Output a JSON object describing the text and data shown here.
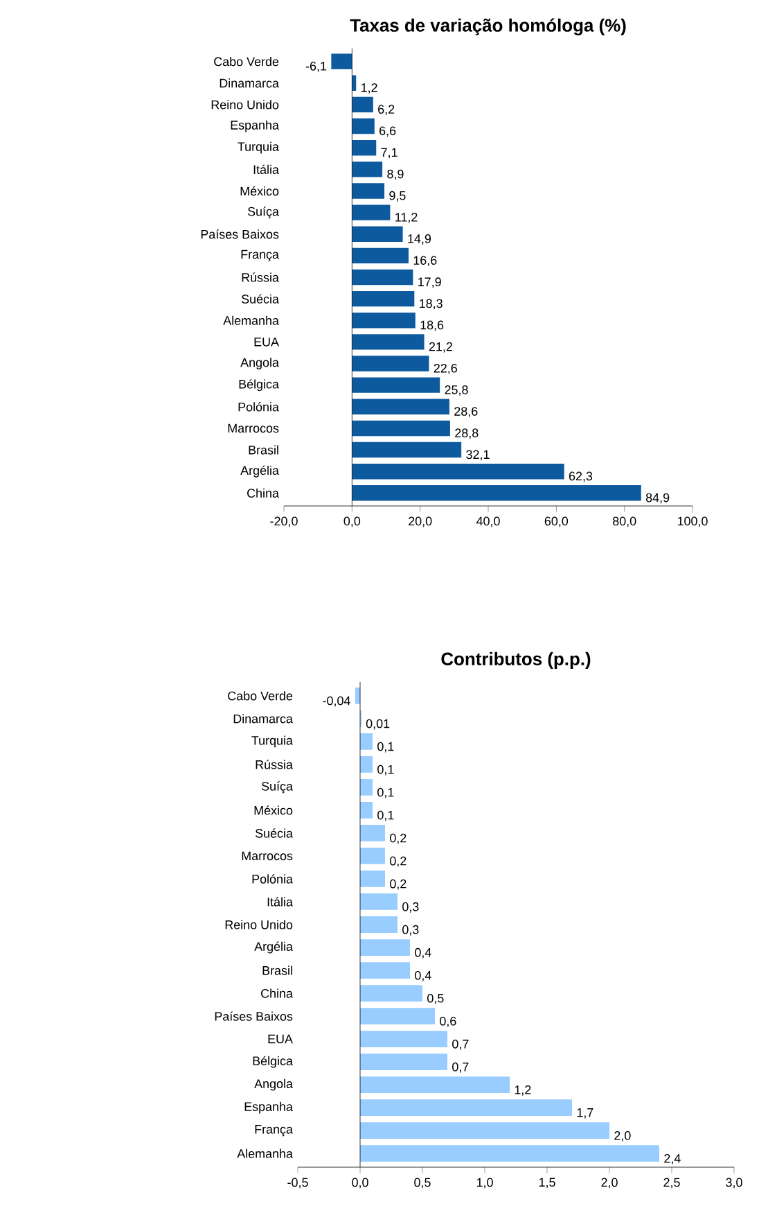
{
  "chart_data": [
    {
      "type": "bar",
      "orientation": "horizontal",
      "title": "Taxas de variação homóloga (%)",
      "color": "#0e5a9e",
      "categories": [
        "Cabo Verde",
        "Dinamarca",
        "Reino Unido",
        "Espanha",
        "Turquia",
        "Itália",
        "México",
        "Suíça",
        "Países Baixos",
        "França",
        "Rússia",
        "Suécia",
        "Alemanha",
        "EUA",
        "Angola",
        "Bélgica",
        "Polónia",
        "Marrocos",
        "Brasil",
        "Argélia",
        "China"
      ],
      "values": [
        -6.1,
        1.2,
        6.2,
        6.6,
        7.1,
        8.9,
        9.5,
        11.2,
        14.9,
        16.6,
        17.9,
        18.3,
        18.6,
        21.2,
        22.6,
        25.8,
        28.6,
        28.8,
        32.1,
        62.3,
        84.9
      ],
      "value_labels": [
        "-6,1",
        "1,2",
        "6,2",
        "6,6",
        "7,1",
        "8,9",
        "9,5",
        "11,2",
        "14,9",
        "16,6",
        "17,9",
        "18,3",
        "18,6",
        "21,2",
        "22,6",
        "25,8",
        "28,6",
        "28,8",
        "32,1",
        "62,3",
        "84,9"
      ],
      "xlim": [
        -20,
        100
      ],
      "xticks": [
        {
          "value": -20,
          "label": "-20,0"
        },
        {
          "value": 0,
          "label": "0,0"
        },
        {
          "value": 20,
          "label": "20,0"
        },
        {
          "value": 40,
          "label": "40,0"
        },
        {
          "value": 60,
          "label": "60,0"
        },
        {
          "value": 80,
          "label": "80,0"
        },
        {
          "value": 100,
          "label": "100,0"
        }
      ]
    },
    {
      "type": "bar",
      "orientation": "horizontal",
      "title": "Contributos (p.p.)",
      "color": "#99ccff",
      "categories": [
        "Cabo Verde",
        "Dinamarca",
        "Turquia",
        "Rússia",
        "Suíça",
        "México",
        "Suécia",
        "Marrocos",
        "Polónia",
        "Itália",
        "Reino Unido",
        "Argélia",
        "Brasil",
        "China",
        "Países Baixos",
        "EUA",
        "Bélgica",
        "Angola",
        "Espanha",
        "França",
        "Alemanha"
      ],
      "values": [
        -0.04,
        0.01,
        0.1,
        0.1,
        0.1,
        0.1,
        0.2,
        0.2,
        0.2,
        0.3,
        0.3,
        0.4,
        0.4,
        0.5,
        0.6,
        0.7,
        0.7,
        1.2,
        1.7,
        2.0,
        2.4
      ],
      "value_labels": [
        "-0,04",
        "0,01",
        "0,1",
        "0,1",
        "0,1",
        "0,1",
        "0,2",
        "0,2",
        "0,2",
        "0,3",
        "0,3",
        "0,4",
        "0,4",
        "0,5",
        "0,6",
        "0,7",
        "0,7",
        "1,2",
        "1,7",
        "2,0",
        "2,4"
      ],
      "xlim": [
        -0.5,
        3
      ],
      "xticks": [
        {
          "value": -0.5,
          "label": "-0,5"
        },
        {
          "value": 0,
          "label": "0,0"
        },
        {
          "value": 0.5,
          "label": "0,5"
        },
        {
          "value": 1,
          "label": "1,0"
        },
        {
          "value": 1.5,
          "label": "1,5"
        },
        {
          "value": 2,
          "label": "2,0"
        },
        {
          "value": 2.5,
          "label": "2,5"
        },
        {
          "value": 3,
          "label": "3,0"
        }
      ]
    }
  ]
}
